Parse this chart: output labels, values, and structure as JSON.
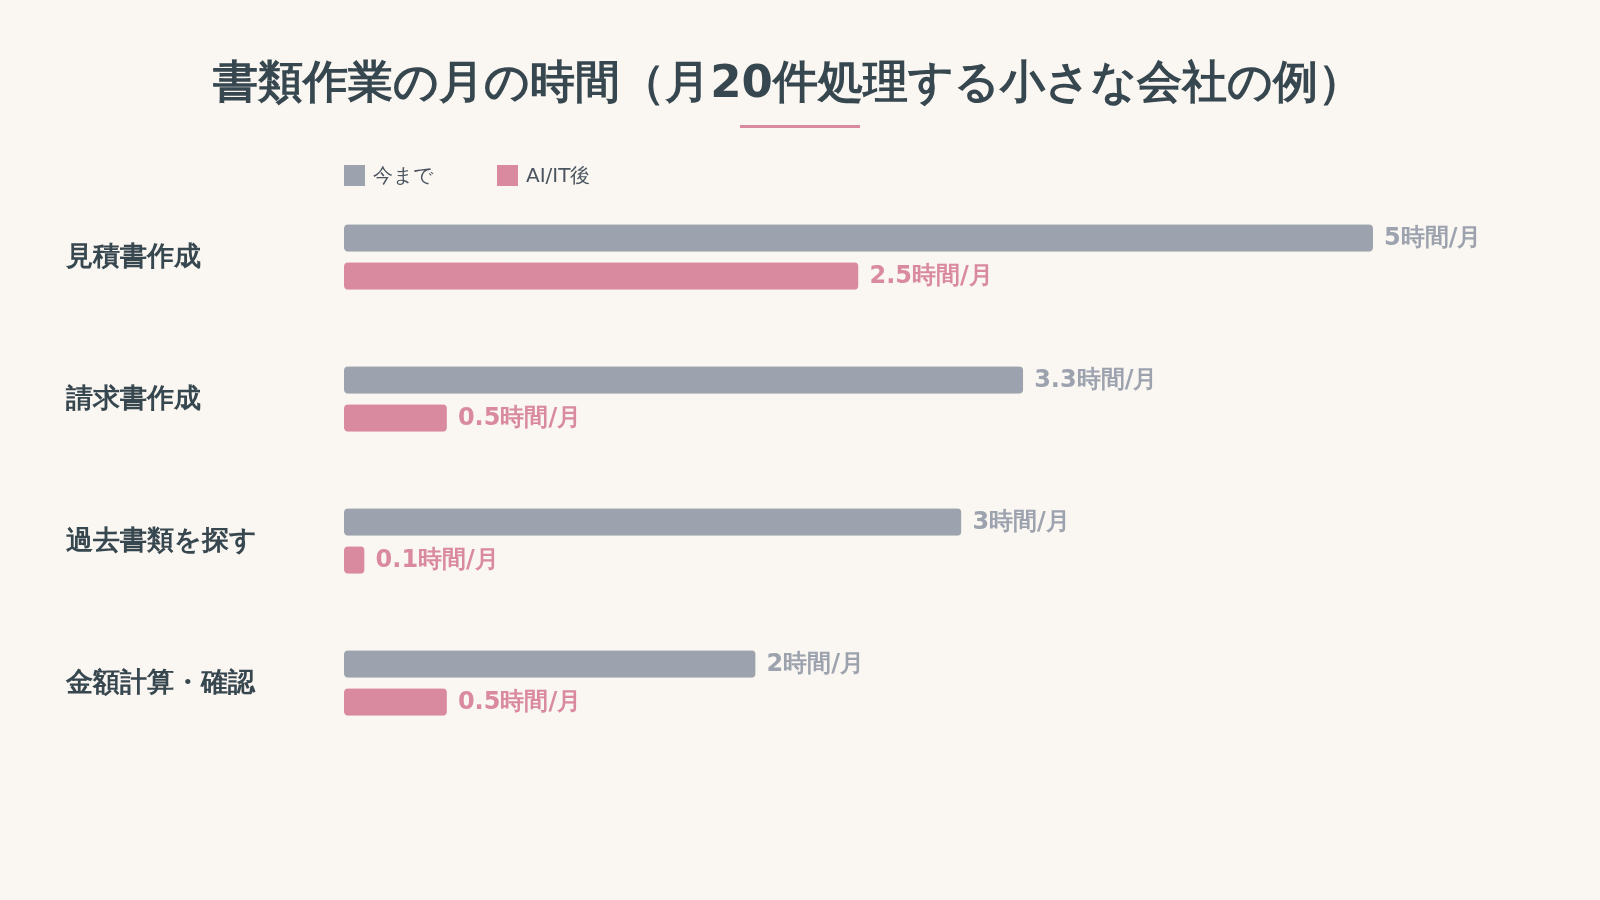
{
  "chart_data": {
    "type": "bar",
    "orientation": "horizontal",
    "title": "書類作業の月の時間（月20件処理する小さな会社の例）",
    "categories": [
      "見積書作成",
      "請求書作成",
      "過去書類を探す",
      "金額計算・確認"
    ],
    "series": [
      {
        "name": "今まで",
        "color": "#9da3ae",
        "values": [
          5,
          3.3,
          3,
          2
        ],
        "value_labels": [
          "5時間/月",
          "3.3時間/月",
          "3時間/月",
          "2時間/月"
        ]
      },
      {
        "name": "AI/IT後",
        "color": "#d98a9e",
        "values": [
          2.5,
          0.5,
          0.1,
          0.5
        ],
        "value_labels": [
          "2.5時間/月",
          "0.5時間/月",
          "0.1時間/月",
          "0.5時間/月"
        ]
      }
    ],
    "legend": "top left",
    "tick_labels": "y",
    "grid": false
  }
}
